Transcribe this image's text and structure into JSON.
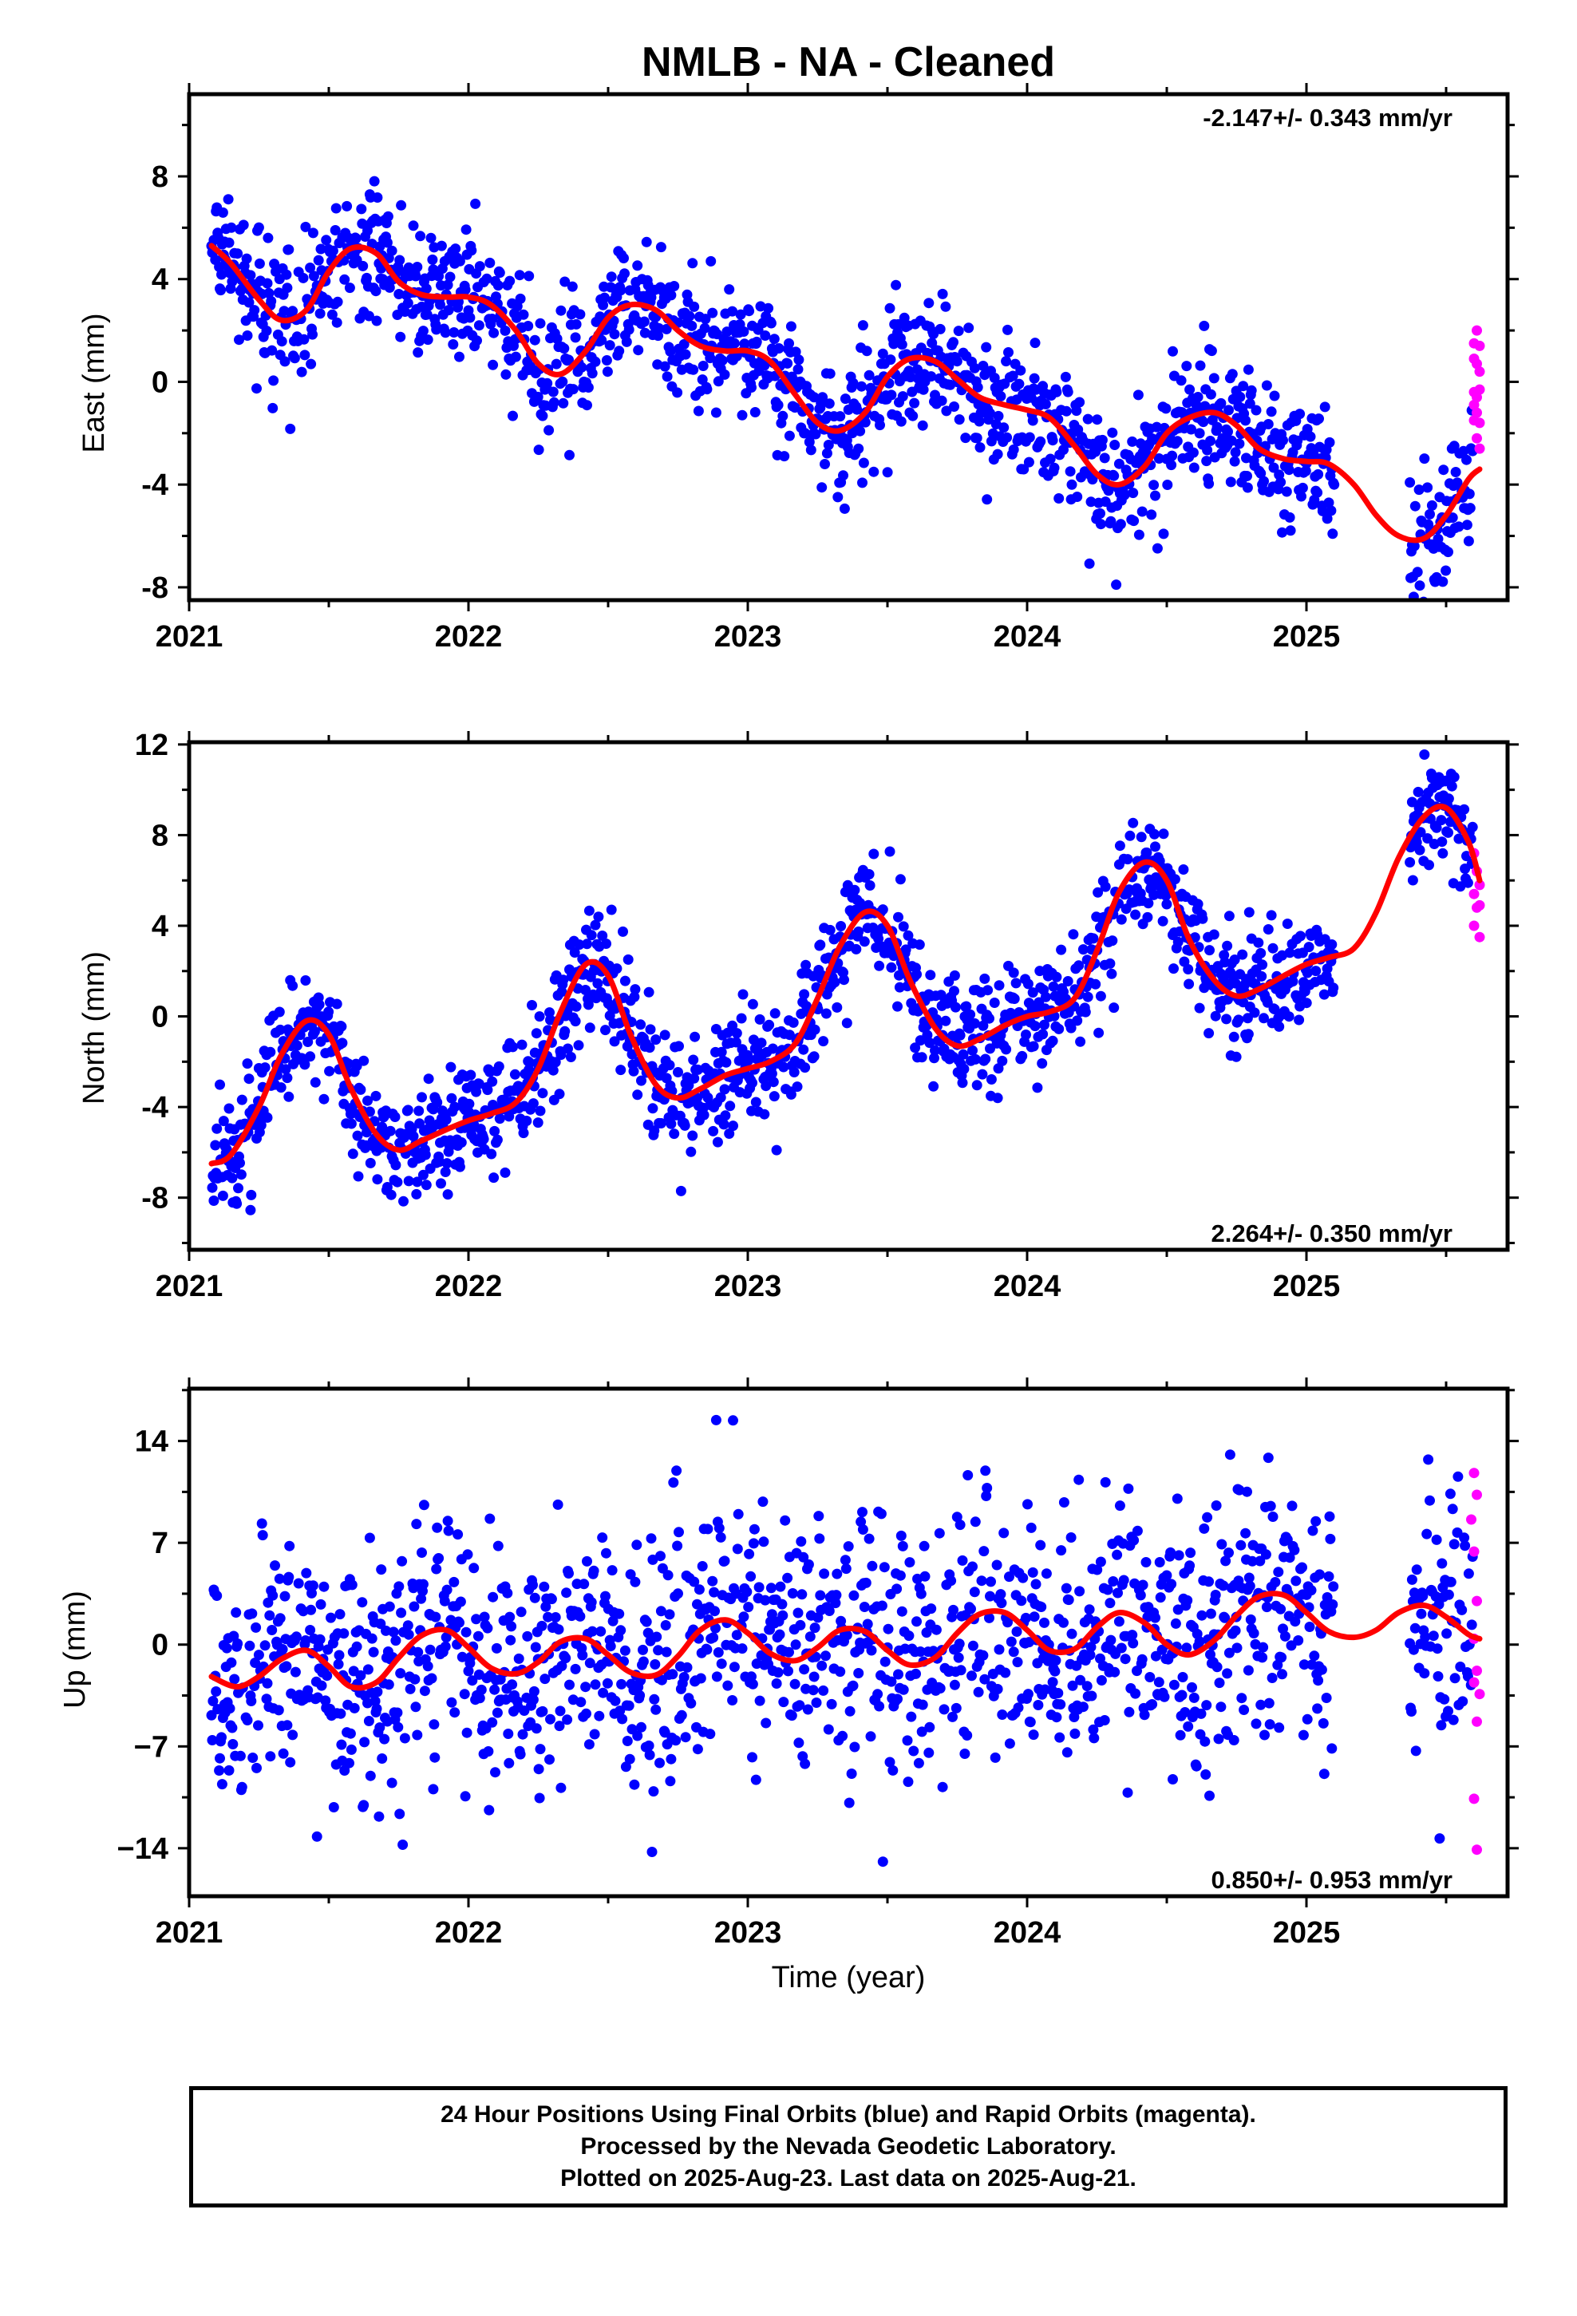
{
  "title": "NMLB  - NA - Cleaned",
  "xlabel": "Time (year)",
  "footer": {
    "line1": "24 Hour Positions Using Final Orbits (blue) and Rapid Orbits (magenta).",
    "line2": "Processed by the Nevada Geodetic Laboratory.",
    "line3": "Plotted on 2025-Aug-23. Last data on 2025-Aug-21."
  },
  "colors": {
    "final": "#0000ff",
    "rapid": "#ff00ff",
    "trend": "#ff0000"
  },
  "chart_data": [
    {
      "type": "scatter",
      "ylabel": "East (mm)",
      "rate_text": "-2.147+/- 0.343 mm/yr",
      "rate_position": "top-right",
      "xlim": [
        2021.0,
        2025.72
      ],
      "ylim": [
        -8.5,
        11.2
      ],
      "xticks": [
        2021,
        2022,
        2023,
        2024,
        2025
      ],
      "xtick_labels": [
        "2021",
        "2022",
        "2023",
        "2024",
        "2025"
      ],
      "yticks": [
        -8,
        -4,
        0,
        4,
        8
      ],
      "ytick_labels": [
        "-8",
        "-4",
        "0",
        "4",
        "8"
      ],
      "series": [
        {
          "role": "model",
          "x": [
            2021.08,
            2021.15,
            2021.25,
            2021.33,
            2021.42,
            2021.5,
            2021.58,
            2021.67,
            2021.75,
            2021.83,
            2021.92,
            2022.0,
            2022.08,
            2022.17,
            2022.25,
            2022.33,
            2022.42,
            2022.5,
            2022.58,
            2022.67,
            2022.75,
            2022.83,
            2022.92,
            2023.0,
            2023.08,
            2023.17,
            2023.25,
            2023.33,
            2023.42,
            2023.5,
            2023.58,
            2023.67,
            2023.75,
            2023.83,
            2023.92,
            2024.0,
            2024.08,
            2024.17,
            2024.25,
            2024.33,
            2024.42,
            2024.5,
            2024.58,
            2024.67,
            2024.75,
            2024.83,
            2024.92,
            2025.0,
            2025.08,
            2025.17,
            2025.25,
            2025.33,
            2025.42,
            2025.5,
            2025.58,
            2025.62
          ],
          "y": [
            5.3,
            4.6,
            3.2,
            2.4,
            2.8,
            4.3,
            5.2,
            5.0,
            3.9,
            3.4,
            3.3,
            3.3,
            3.0,
            2.0,
            0.7,
            0.3,
            1.2,
            2.5,
            3.0,
            2.8,
            2.0,
            1.4,
            1.2,
            1.2,
            0.8,
            -0.5,
            -1.6,
            -1.9,
            -1.2,
            0.2,
            0.9,
            0.8,
            0.1,
            -0.6,
            -0.9,
            -1.1,
            -1.4,
            -2.5,
            -3.6,
            -4.0,
            -3.3,
            -2.0,
            -1.4,
            -1.2,
            -1.7,
            -2.6,
            -3.0,
            -3.1,
            -3.2,
            -4.0,
            -5.2,
            -6.0,
            -6.1,
            -5.2,
            -3.8,
            -3.4
          ]
        }
      ],
      "final_scatter_spread": 1.25,
      "rapid_points": [
        [
          2025.6,
          1.5
        ],
        [
          2025.61,
          2.0
        ],
        [
          2025.62,
          1.4
        ],
        [
          2025.6,
          0.9
        ],
        [
          2025.61,
          0.7
        ],
        [
          2025.62,
          0.4
        ],
        [
          2025.6,
          -0.4
        ],
        [
          2025.61,
          -0.6
        ],
        [
          2025.62,
          -0.3
        ],
        [
          2025.6,
          -0.9
        ],
        [
          2025.61,
          -1.2
        ],
        [
          2025.6,
          -1.5
        ],
        [
          2025.62,
          -1.6
        ],
        [
          2025.61,
          -2.2
        ],
        [
          2025.62,
          -2.6
        ]
      ]
    },
    {
      "type": "scatter",
      "ylabel": "North (mm)",
      "rate_text": "2.264+/- 0.350 mm/yr",
      "rate_position": "bottom-right",
      "xlim": [
        2021.0,
        2025.72
      ],
      "ylim": [
        -10.3,
        12.1
      ],
      "xticks": [
        2021,
        2022,
        2023,
        2024,
        2025
      ],
      "xtick_labels": [
        "2021",
        "2022",
        "2023",
        "2024",
        "2025"
      ],
      "yticks": [
        -8,
        -4,
        0,
        4,
        8,
        12
      ],
      "ytick_labels": [
        "-8",
        "-4",
        "0",
        "4",
        "8",
        "12"
      ],
      "series": [
        {
          "role": "model",
          "x": [
            2021.08,
            2021.15,
            2021.25,
            2021.33,
            2021.42,
            2021.5,
            2021.58,
            2021.67,
            2021.75,
            2021.83,
            2021.92,
            2022.0,
            2022.08,
            2022.17,
            2022.25,
            2022.33,
            2022.42,
            2022.5,
            2022.58,
            2022.67,
            2022.75,
            2022.83,
            2022.92,
            2023.0,
            2023.08,
            2023.17,
            2023.25,
            2023.33,
            2023.42,
            2023.5,
            2023.58,
            2023.67,
            2023.75,
            2023.83,
            2023.92,
            2024.0,
            2024.08,
            2024.17,
            2024.25,
            2024.33,
            2024.42,
            2024.5,
            2024.58,
            2024.67,
            2024.75,
            2024.83,
            2024.92,
            2025.0,
            2025.08,
            2025.17,
            2025.25,
            2025.33,
            2025.42,
            2025.5,
            2025.58,
            2025.62
          ],
          "y": [
            -6.5,
            -6.1,
            -4.0,
            -1.7,
            -0.2,
            -0.8,
            -3.2,
            -5.2,
            -5.9,
            -5.5,
            -5.0,
            -4.6,
            -4.3,
            -3.8,
            -2.3,
            0.2,
            2.3,
            1.8,
            -0.8,
            -3.0,
            -3.6,
            -3.2,
            -2.6,
            -2.3,
            -2.0,
            -1.2,
            0.8,
            3.1,
            4.6,
            4.0,
            1.6,
            -0.5,
            -1.3,
            -1.0,
            -0.4,
            0.0,
            0.2,
            0.8,
            2.9,
            5.5,
            6.8,
            6.0,
            3.4,
            1.6,
            0.9,
            1.2,
            1.8,
            2.3,
            2.6,
            3.0,
            4.6,
            7.0,
            8.8,
            9.2,
            7.7,
            6.0
          ]
        }
      ],
      "final_scatter_spread": 1.3,
      "rapid_points": [
        [
          2025.6,
          7.2
        ],
        [
          2025.61,
          6.4
        ],
        [
          2025.62,
          5.8
        ],
        [
          2025.6,
          5.4
        ],
        [
          2025.61,
          4.8
        ],
        [
          2025.62,
          4.9
        ],
        [
          2025.6,
          4.0
        ],
        [
          2025.62,
          3.5
        ]
      ]
    },
    {
      "type": "scatter",
      "ylabel": "Up (mm)",
      "rate_text": "0.850+/- 0.953 mm/yr",
      "rate_position": "bottom-right",
      "xlim": [
        2021.0,
        2025.72
      ],
      "ylim": [
        -17.3,
        17.6
      ],
      "xticks": [
        2021,
        2022,
        2023,
        2024,
        2025
      ],
      "xtick_labels": [
        "2021",
        "2022",
        "2023",
        "2024",
        "2025"
      ],
      "yticks": [
        -14,
        -7,
        0,
        7,
        14
      ],
      "ytick_labels": [
        "−14",
        "−7",
        "0",
        "7",
        "14"
      ],
      "series": [
        {
          "role": "model",
          "x": [
            2021.08,
            2021.17,
            2021.25,
            2021.33,
            2021.42,
            2021.5,
            2021.58,
            2021.67,
            2021.75,
            2021.83,
            2021.92,
            2022.0,
            2022.08,
            2022.17,
            2022.25,
            2022.33,
            2022.42,
            2022.5,
            2022.58,
            2022.67,
            2022.75,
            2022.83,
            2022.92,
            2023.0,
            2023.08,
            2023.17,
            2023.25,
            2023.33,
            2023.42,
            2023.5,
            2023.58,
            2023.67,
            2023.75,
            2023.83,
            2023.92,
            2024.0,
            2024.08,
            2024.17,
            2024.25,
            2024.33,
            2024.42,
            2024.5,
            2024.58,
            2024.67,
            2024.75,
            2024.83,
            2024.92,
            2025.0,
            2025.08,
            2025.17,
            2025.25,
            2025.33,
            2025.42,
            2025.5,
            2025.58,
            2025.62
          ],
          "y": [
            -2.2,
            -2.9,
            -2.2,
            -1.0,
            -0.4,
            -1.5,
            -2.9,
            -2.6,
            -0.9,
            0.6,
            1.0,
            -0.2,
            -1.6,
            -2.0,
            -1.2,
            0.2,
            0.4,
            -0.7,
            -1.9,
            -2.1,
            -0.8,
            1.0,
            1.7,
            0.8,
            -0.6,
            -1.1,
            -0.2,
            1.0,
            0.9,
            -0.4,
            -1.4,
            -0.9,
            0.8,
            2.1,
            2.2,
            1.0,
            -0.4,
            -0.3,
            1.2,
            2.2,
            1.5,
            0.0,
            -0.7,
            0.3,
            2.0,
            3.3,
            3.4,
            2.2,
            0.9,
            0.5,
            1.0,
            2.2,
            2.7,
            1.9,
            0.7,
            0.4
          ]
        }
      ],
      "final_scatter_spread": 4.3,
      "rapid_points": [
        [
          2025.6,
          11.8
        ],
        [
          2025.61,
          10.3
        ],
        [
          2025.59,
          8.6
        ],
        [
          2025.6,
          6.4
        ],
        [
          2025.61,
          3.0
        ],
        [
          2025.6,
          0.4
        ],
        [
          2025.61,
          -1.8
        ],
        [
          2025.6,
          -2.6
        ],
        [
          2025.62,
          -3.4
        ],
        [
          2025.61,
          -5.3
        ],
        [
          2025.6,
          -10.6
        ],
        [
          2025.61,
          -14.1
        ]
      ]
    }
  ]
}
